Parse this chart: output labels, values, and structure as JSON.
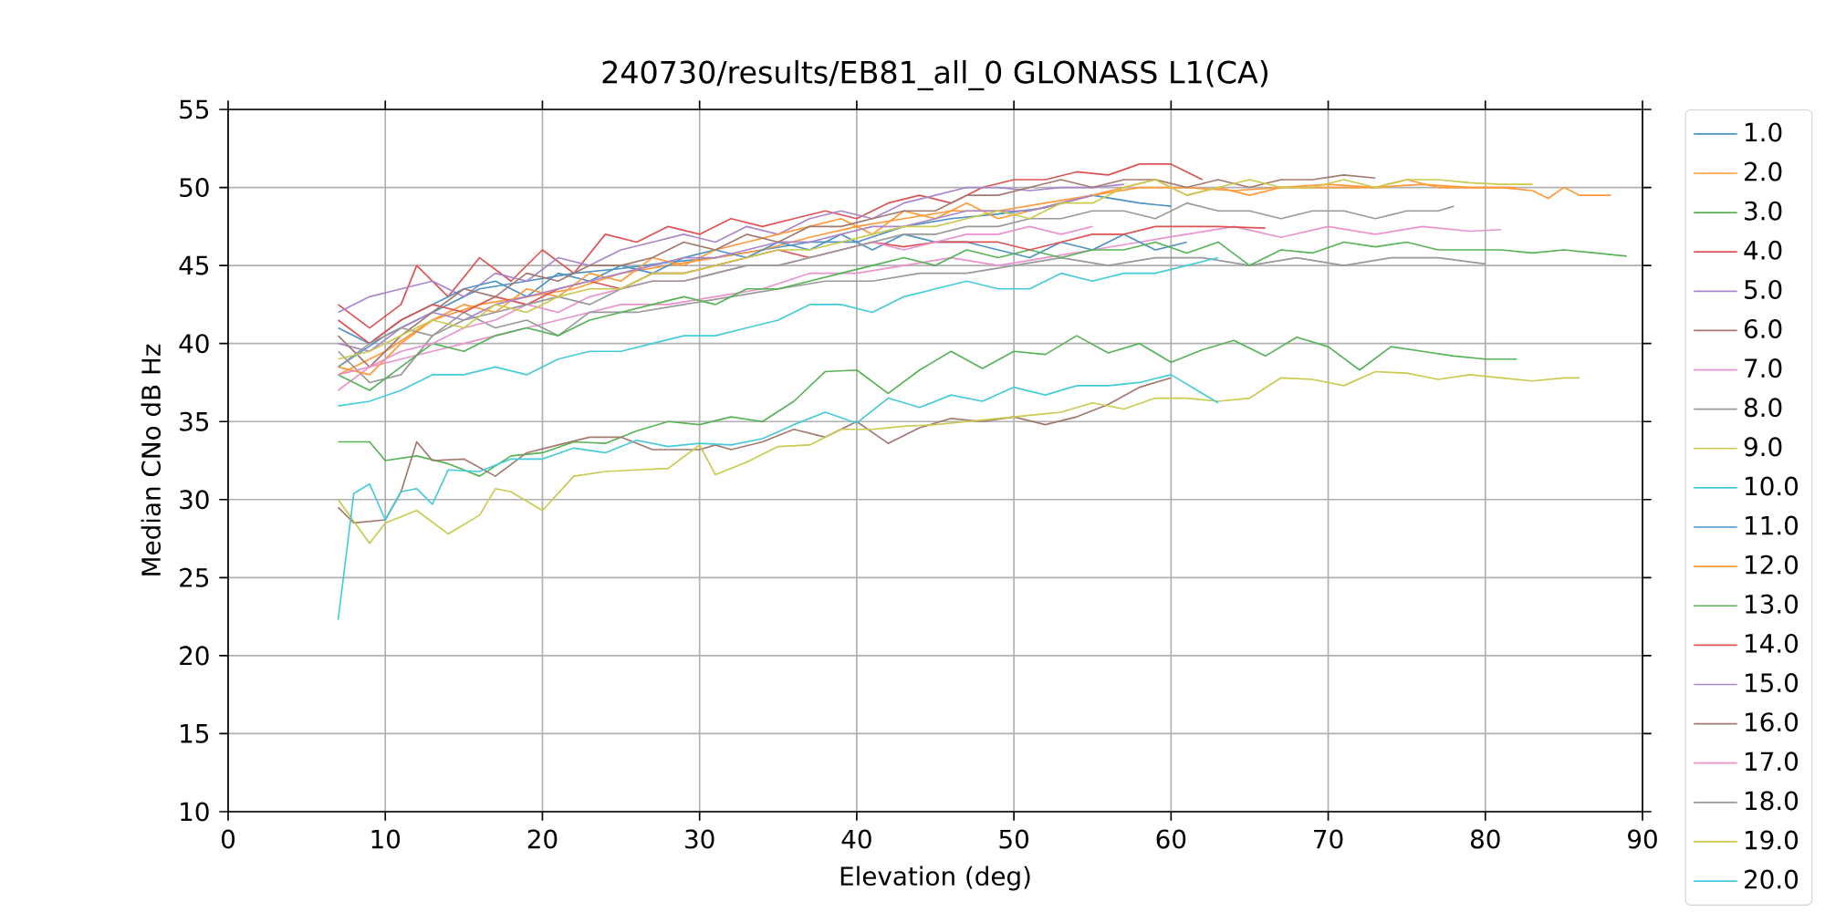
{
  "chart_data": {
    "type": "line",
    "title": "240730/results/EB81_all_0 GLONASS L1(CA)",
    "xlabel": "Elevation (deg)",
    "ylabel": "Median CNo dB Hz",
    "xlim": [
      0,
      90
    ],
    "ylim": [
      10,
      55
    ],
    "xticks": [
      0,
      10,
      20,
      30,
      40,
      50,
      60,
      70,
      80,
      90
    ],
    "yticks": [
      10,
      15,
      20,
      25,
      30,
      35,
      40,
      45,
      50,
      55
    ],
    "grid": true,
    "legend": "right",
    "marker": "none",
    "line_style": "solid",
    "series": [
      {
        "name": "1.0",
        "color": "#4c92c3",
        "x": [
          7,
          10,
          13,
          16,
          19,
          22,
          25,
          28,
          31,
          34,
          37,
          40,
          43,
          46,
          49,
          52,
          55,
          58,
          60
        ],
        "values": [
          38.5,
          40.5,
          42.0,
          43.5,
          44.0,
          44.5,
          44.8,
          45.2,
          45.5,
          46.0,
          46.5,
          46.5,
          47.5,
          48.0,
          48.3,
          48.7,
          49.5,
          49.0,
          48.8
        ]
      },
      {
        "name": "2.0",
        "color": "#ff9939",
        "x": [
          7,
          10,
          13,
          16,
          19,
          22,
          25,
          28,
          31,
          34,
          37,
          40,
          43,
          46,
          49,
          52,
          55,
          58,
          61,
          64,
          67,
          70,
          73,
          76,
          79,
          82
        ],
        "values": [
          38.0,
          39.5,
          41.5,
          42.5,
          43.0,
          43.5,
          44.5,
          45.0,
          45.5,
          46.0,
          46.8,
          47.5,
          48.0,
          48.5,
          48.5,
          49.0,
          49.5,
          50.0,
          50.0,
          49.8,
          50.0,
          50.2,
          50.0,
          50.2,
          50.0,
          50.0
        ]
      },
      {
        "name": "3.0",
        "color": "#56b356",
        "x": [
          7,
          9,
          10,
          12,
          14,
          16,
          18,
          20,
          22,
          24,
          26,
          28,
          30,
          32,
          34,
          36,
          38,
          40,
          42,
          44,
          46,
          48,
          50,
          52,
          54,
          56,
          58,
          60,
          62,
          64,
          66,
          68,
          70,
          72,
          74,
          76,
          78,
          80,
          82
        ],
        "values": [
          33.7,
          33.7,
          32.5,
          32.8,
          32.3,
          31.5,
          32.8,
          33.0,
          33.7,
          33.6,
          34.4,
          35.0,
          34.8,
          35.3,
          35.0,
          36.3,
          38.2,
          38.3,
          36.8,
          38.3,
          39.5,
          38.4,
          39.5,
          39.3,
          40.5,
          39.4,
          40.0,
          38.8,
          39.6,
          40.2,
          39.2,
          40.4,
          39.8,
          38.3,
          39.8,
          39.5,
          39.2,
          39.0,
          39.0
        ]
      },
      {
        "name": "4.0",
        "color": "#de5253",
        "x": [
          7,
          9,
          11,
          12,
          14,
          16,
          18,
          20,
          22,
          24,
          26,
          28,
          30,
          32,
          34,
          36,
          38,
          40,
          42,
          44,
          46,
          48,
          50,
          52,
          54,
          56,
          58,
          60,
          62
        ],
        "values": [
          42.5,
          41.0,
          42.5,
          45.0,
          43.0,
          45.5,
          44.0,
          46.0,
          44.5,
          47.0,
          46.5,
          47.5,
          47.0,
          48.0,
          47.5,
          48.0,
          48.5,
          48.0,
          49.0,
          49.5,
          49.0,
          50.0,
          50.5,
          50.5,
          51.0,
          50.8,
          51.5,
          51.5,
          50.5
        ]
      },
      {
        "name": "5.0",
        "color": "#a985ca",
        "x": [
          7,
          9,
          11,
          13,
          15,
          17,
          19,
          21,
          23,
          25,
          27,
          29,
          31,
          33,
          35,
          37,
          39,
          41,
          43,
          45,
          47,
          49,
          51,
          53,
          55,
          57
        ],
        "values": [
          42.0,
          43.0,
          43.5,
          44.0,
          43.0,
          44.5,
          44.0,
          45.5,
          45.0,
          46.0,
          46.5,
          47.0,
          46.5,
          47.5,
          47.0,
          48.0,
          48.5,
          48.0,
          49.0,
          49.5,
          50.0,
          50.0,
          49.8,
          50.0,
          50.0,
          50.2
        ]
      },
      {
        "name": "6.0",
        "color": "#a3786f",
        "x": [
          7,
          8,
          10,
          11,
          12,
          13,
          15,
          17,
          19,
          21,
          23,
          25,
          27,
          29,
          30,
          31,
          32,
          34,
          36,
          38,
          40,
          42,
          44,
          46,
          48,
          50,
          52,
          54,
          56,
          58,
          60
        ],
        "values": [
          29.5,
          28.5,
          28.7,
          30.5,
          33.7,
          32.5,
          32.6,
          31.5,
          33.0,
          33.5,
          34.0,
          34.0,
          33.2,
          33.2,
          33.2,
          33.5,
          33.2,
          33.7,
          34.5,
          34.0,
          35.0,
          33.6,
          34.6,
          35.2,
          35.0,
          35.3,
          34.8,
          35.3,
          36.1,
          37.2,
          37.8
        ]
      },
      {
        "name": "7.0",
        "color": "#e992ce",
        "x": [
          7,
          9,
          11,
          13,
          15,
          17,
          19,
          21,
          23,
          25,
          28,
          31,
          34,
          37,
          40,
          43,
          46,
          49,
          52,
          55,
          58,
          61,
          64,
          67,
          70,
          73,
          76,
          79,
          81
        ],
        "values": [
          37.0,
          38.5,
          39.0,
          39.5,
          40.0,
          40.5,
          41.0,
          41.5,
          42.0,
          42.5,
          42.5,
          43.0,
          43.5,
          44.5,
          44.5,
          45.0,
          45.5,
          45.0,
          45.5,
          46.0,
          46.5,
          47.0,
          47.5,
          46.8,
          47.5,
          47.0,
          47.5,
          47.2,
          47.3
        ]
      },
      {
        "name": "8.0",
        "color": "#999999",
        "x": [
          7,
          9,
          11,
          13,
          15,
          17,
          19,
          21,
          23,
          26,
          29,
          32,
          35,
          38,
          41,
          44,
          47,
          50,
          53,
          56,
          59,
          62,
          65,
          68,
          71,
          74,
          77,
          80
        ],
        "values": [
          39.5,
          37.5,
          38.0,
          40.5,
          42.0,
          41.0,
          41.5,
          40.5,
          42.0,
          42.0,
          42.5,
          43.0,
          43.5,
          44.0,
          44.0,
          44.5,
          44.5,
          45.0,
          45.5,
          45.0,
          45.5,
          45.5,
          45.0,
          45.5,
          45.0,
          45.5,
          45.5,
          45.1
        ]
      },
      {
        "name": "9.0",
        "color": "#c9ca4e",
        "x": [
          7,
          9,
          10,
          12,
          14,
          16,
          17,
          18,
          20,
          22,
          24,
          26,
          28,
          30,
          31,
          33,
          35,
          37,
          39,
          41,
          43,
          45,
          47,
          49,
          51,
          53,
          55,
          57,
          59,
          61,
          63,
          65,
          67,
          69,
          71,
          73,
          75,
          77,
          79,
          81,
          83,
          85,
          86
        ],
        "values": [
          30.0,
          27.2,
          28.5,
          29.3,
          27.8,
          29.0,
          30.7,
          30.5,
          29.3,
          31.5,
          31.8,
          31.9,
          32.0,
          33.5,
          31.6,
          32.4,
          33.4,
          33.5,
          34.5,
          34.5,
          34.7,
          34.8,
          35.0,
          35.2,
          35.4,
          35.6,
          36.2,
          35.8,
          36.5,
          36.5,
          36.3,
          36.5,
          37.8,
          37.7,
          37.3,
          38.2,
          38.1,
          37.7,
          38.0,
          37.8,
          37.6,
          37.8,
          37.8
        ]
      },
      {
        "name": "10.0",
        "color": "#45cbd9",
        "x": [
          7,
          8,
          9,
          10,
          11,
          12,
          13,
          14,
          16,
          18,
          20,
          22,
          24,
          26,
          28,
          30,
          32,
          34,
          36,
          38,
          40,
          42,
          44,
          46,
          48,
          50,
          52,
          54,
          56,
          58,
          60,
          62,
          63
        ],
        "values": [
          22.3,
          30.4,
          31.0,
          28.7,
          30.5,
          30.7,
          29.7,
          31.9,
          31.8,
          32.6,
          32.6,
          33.3,
          33.0,
          33.8,
          33.4,
          33.6,
          33.5,
          33.9,
          34.8,
          35.6,
          34.9,
          36.5,
          35.9,
          36.7,
          36.3,
          37.2,
          36.7,
          37.3,
          37.3,
          37.5,
          38.0,
          36.8,
          36.2
        ]
      },
      {
        "name": "11.0",
        "color": "#4c92c3",
        "x": [
          7,
          9,
          11,
          13,
          15,
          17,
          19,
          21,
          23,
          25,
          27,
          29,
          31,
          33,
          35,
          37,
          39,
          41,
          43,
          45,
          47,
          49,
          51,
          53,
          55,
          57,
          59,
          61
        ],
        "values": [
          41.0,
          40.0,
          41.5,
          42.5,
          43.5,
          44.0,
          43.0,
          44.5,
          44.0,
          45.0,
          44.5,
          45.5,
          46.0,
          45.5,
          46.5,
          46.0,
          47.0,
          46.0,
          47.0,
          46.5,
          46.5,
          46.0,
          45.5,
          46.5,
          46.0,
          47.0,
          46.0,
          46.5
        ]
      },
      {
        "name": "12.0",
        "color": "#ff9939",
        "x": [
          7,
          9,
          11,
          13,
          15,
          17,
          19,
          21,
          23,
          25,
          27,
          29,
          31,
          33,
          35,
          37,
          39,
          41,
          43,
          45,
          47,
          49,
          51,
          53,
          55,
          57,
          59,
          61,
          63,
          65,
          67,
          69,
          71,
          73,
          75,
          77,
          79,
          81,
          83,
          84,
          85,
          86,
          88
        ],
        "values": [
          38.5,
          38.0,
          40.0,
          41.5,
          42.5,
          42.0,
          43.5,
          43.0,
          44.5,
          44.0,
          45.5,
          45.0,
          46.0,
          46.5,
          47.0,
          47.5,
          48.0,
          47.0,
          48.5,
          48.0,
          49.0,
          48.0,
          48.5,
          49.0,
          49.5,
          50.0,
          50.5,
          49.5,
          50.0,
          49.5,
          50.0,
          50.0,
          50.0,
          50.0,
          50.5,
          50.0,
          50.0,
          50.0,
          49.8,
          49.3,
          50.0,
          49.5,
          49.5
        ]
      },
      {
        "name": "13.0",
        "color": "#56b356",
        "x": [
          7,
          9,
          11,
          13,
          15,
          17,
          19,
          21,
          23,
          25,
          27,
          29,
          31,
          33,
          35,
          37,
          39,
          41,
          43,
          45,
          47,
          49,
          51,
          53,
          55,
          57,
          59,
          61,
          63,
          65,
          67,
          69,
          71,
          73,
          75,
          77,
          79,
          81,
          83,
          85,
          87,
          89
        ],
        "values": [
          38.0,
          37.0,
          38.5,
          40.0,
          39.5,
          40.5,
          41.0,
          40.5,
          41.5,
          42.0,
          42.5,
          43.0,
          42.5,
          43.5,
          43.5,
          44.0,
          44.5,
          45.0,
          45.5,
          45.0,
          46.0,
          45.5,
          46.0,
          45.5,
          46.0,
          46.0,
          46.5,
          45.8,
          46.5,
          45.0,
          46.0,
          45.8,
          46.5,
          46.2,
          46.5,
          46.0,
          46.0,
          46.0,
          45.8,
          46.0,
          45.8,
          45.6
        ]
      },
      {
        "name": "14.0",
        "color": "#de5253",
        "x": [
          7,
          9,
          11,
          13,
          15,
          17,
          19,
          21,
          23,
          25,
          27,
          29,
          31,
          33,
          35,
          37,
          39,
          41,
          43,
          45,
          47,
          49,
          51,
          53,
          55,
          57,
          59,
          61,
          63,
          66
        ],
        "values": [
          41.5,
          40.0,
          41.5,
          42.5,
          42.0,
          43.0,
          42.5,
          43.5,
          44.0,
          43.5,
          44.5,
          44.5,
          45.0,
          45.5,
          46.0,
          45.5,
          46.0,
          46.5,
          46.2,
          46.5,
          46.5,
          46.5,
          46.0,
          46.5,
          47.0,
          47.0,
          47.5,
          47.5,
          47.5,
          47.4
        ]
      },
      {
        "name": "15.0",
        "color": "#a985ca",
        "x": [
          7,
          9,
          11,
          13,
          15,
          17,
          19,
          21,
          23,
          25,
          27,
          29,
          31,
          33,
          35,
          37,
          39,
          41,
          43,
          45,
          47,
          49,
          51,
          53,
          55
        ],
        "values": [
          40.0,
          39.5,
          41.0,
          42.0,
          41.5,
          42.5,
          43.0,
          43.5,
          44.0,
          44.5,
          45.0,
          45.5,
          45.5,
          46.0,
          46.5,
          46.5,
          47.0,
          47.5,
          47.5,
          48.0,
          48.5,
          48.5,
          48.5,
          49.0,
          49.5
        ]
      },
      {
        "name": "16.0",
        "color": "#a3786f",
        "x": [
          7,
          9,
          11,
          13,
          15,
          17,
          19,
          21,
          23,
          25,
          27,
          29,
          31,
          33,
          35,
          37,
          39,
          41,
          43,
          45,
          47,
          49,
          51,
          53,
          55,
          57,
          59,
          61,
          63,
          65,
          67,
          69,
          71,
          73
        ],
        "values": [
          40.5,
          38.5,
          40.5,
          42.0,
          43.5,
          43.0,
          44.5,
          44.0,
          45.0,
          45.0,
          45.5,
          46.5,
          46.0,
          47.0,
          46.5,
          47.5,
          47.5,
          48.0,
          48.5,
          48.5,
          49.5,
          49.5,
          50.0,
          50.5,
          50.0,
          50.5,
          50.5,
          50.0,
          50.5,
          50.0,
          50.5,
          50.5,
          50.8,
          50.6
        ]
      },
      {
        "name": "17.0",
        "color": "#e992ce",
        "x": [
          7,
          9,
          11,
          13,
          15,
          17,
          19,
          21,
          23,
          25,
          27,
          29,
          31,
          33,
          35,
          37,
          39,
          41,
          43,
          45,
          47,
          49,
          51,
          53,
          55
        ],
        "values": [
          38.0,
          38.5,
          39.5,
          40.0,
          41.0,
          41.5,
          42.5,
          42.0,
          43.0,
          43.5,
          44.0,
          44.0,
          44.5,
          45.0,
          45.0,
          45.5,
          46.0,
          46.5,
          46.0,
          46.5,
          47.0,
          47.0,
          47.5,
          47.0,
          47.5
        ]
      },
      {
        "name": "18.0",
        "color": "#999999",
        "x": [
          7,
          9,
          11,
          13,
          15,
          17,
          19,
          21,
          23,
          25,
          27,
          29,
          31,
          33,
          35,
          37,
          39,
          41,
          43,
          45,
          47,
          49,
          51,
          53,
          55,
          57,
          59,
          61,
          63,
          65,
          67,
          69,
          71,
          73,
          75,
          77,
          78
        ],
        "values": [
          38.5,
          40.0,
          41.0,
          40.5,
          41.5,
          42.0,
          42.5,
          43.0,
          42.5,
          43.5,
          44.0,
          44.0,
          44.5,
          45.0,
          45.0,
          45.5,
          46.0,
          46.5,
          47.0,
          47.0,
          47.5,
          47.5,
          48.0,
          48.0,
          48.5,
          48.5,
          48.0,
          49.0,
          48.5,
          48.5,
          48.0,
          48.5,
          48.5,
          48.0,
          48.5,
          48.5,
          48.8
        ]
      },
      {
        "name": "19.0",
        "color": "#c9ca4e",
        "x": [
          7,
          9,
          11,
          13,
          15,
          17,
          19,
          21,
          23,
          25,
          27,
          29,
          31,
          33,
          35,
          37,
          39,
          41,
          43,
          45,
          47,
          49,
          51,
          53,
          55,
          57,
          59,
          61,
          63,
          65,
          67,
          69,
          71,
          73,
          75,
          77,
          79,
          81,
          83
        ],
        "values": [
          39.0,
          39.5,
          40.5,
          41.5,
          41.0,
          42.5,
          42.0,
          43.0,
          43.5,
          43.5,
          44.5,
          44.5,
          45.0,
          45.5,
          46.0,
          46.0,
          46.5,
          47.0,
          47.5,
          47.5,
          48.0,
          48.5,
          48.0,
          49.0,
          49.0,
          50.0,
          50.5,
          49.5,
          50.0,
          50.5,
          50.0,
          50.0,
          50.5,
          50.0,
          50.5,
          50.5,
          50.3,
          50.2,
          50.2
        ]
      },
      {
        "name": "20.0",
        "color": "#45cbd9",
        "x": [
          7,
          9,
          11,
          13,
          15,
          17,
          19,
          21,
          23,
          25,
          27,
          29,
          31,
          33,
          35,
          37,
          39,
          41,
          43,
          45,
          47,
          49,
          51,
          53,
          55,
          57,
          59,
          61,
          63
        ],
        "values": [
          36.0,
          36.3,
          37.0,
          38.0,
          38.0,
          38.5,
          38.0,
          39.0,
          39.5,
          39.5,
          40.0,
          40.5,
          40.5,
          41.0,
          41.5,
          42.5,
          42.5,
          42.0,
          43.0,
          43.5,
          44.0,
          43.5,
          43.5,
          44.5,
          44.0,
          44.5,
          44.5,
          45.0,
          45.5
        ]
      }
    ]
  }
}
